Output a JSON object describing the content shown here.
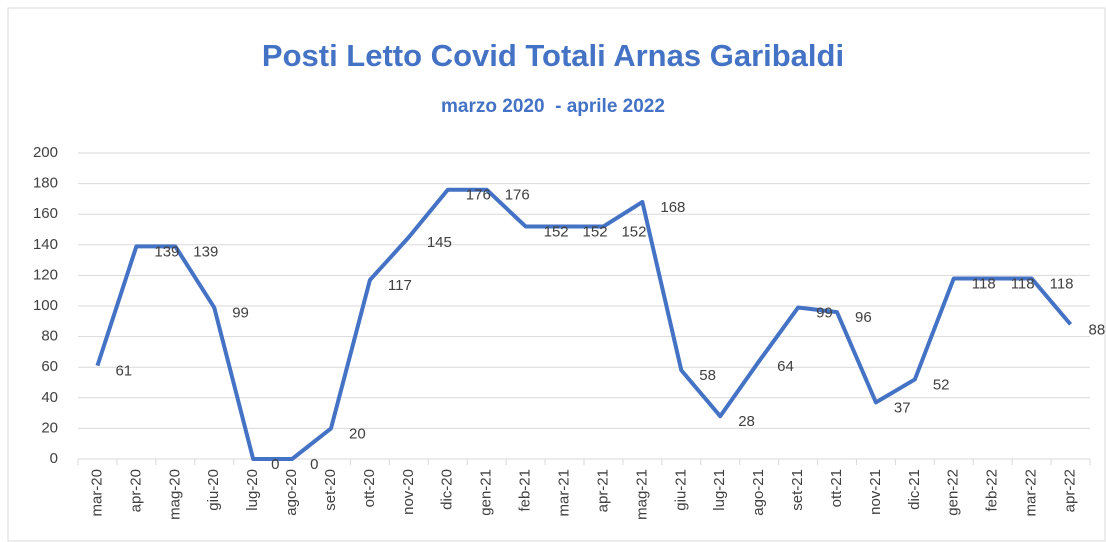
{
  "chart_data": {
    "type": "line",
    "title": "Posti Letto Covid Totali Arnas Garibaldi",
    "subtitle": "marzo 2020  - aprile 2022",
    "categories": [
      "mar-20",
      "apr-20",
      "mag-20",
      "giu-20",
      "lug-20",
      "ago-20",
      "set-20",
      "ott-20",
      "nov-20",
      "dic-20",
      "gen-21",
      "feb-21",
      "mar-21",
      "apr-21",
      "mag-21",
      "giu-21",
      "lug-21",
      "ago-21",
      "set-21",
      "ott-21",
      "nov-21",
      "dic-21",
      "gen-22",
      "feb-22",
      "mar-22",
      "apr-22"
    ],
    "series": [
      {
        "name": "Posti Letto Covid Totali",
        "color": "#4472c4",
        "values": [
          61,
          139,
          139,
          99,
          0,
          0,
          20,
          117,
          145,
          176,
          176,
          152,
          152,
          152,
          168,
          58,
          28,
          64,
          99,
          96,
          37,
          52,
          118,
          118,
          118,
          88
        ]
      }
    ],
    "ylim": [
      0,
      200
    ],
    "yticks": [
      0,
      20,
      40,
      60,
      80,
      100,
      120,
      140,
      160,
      180,
      200
    ],
    "grid": true
  }
}
